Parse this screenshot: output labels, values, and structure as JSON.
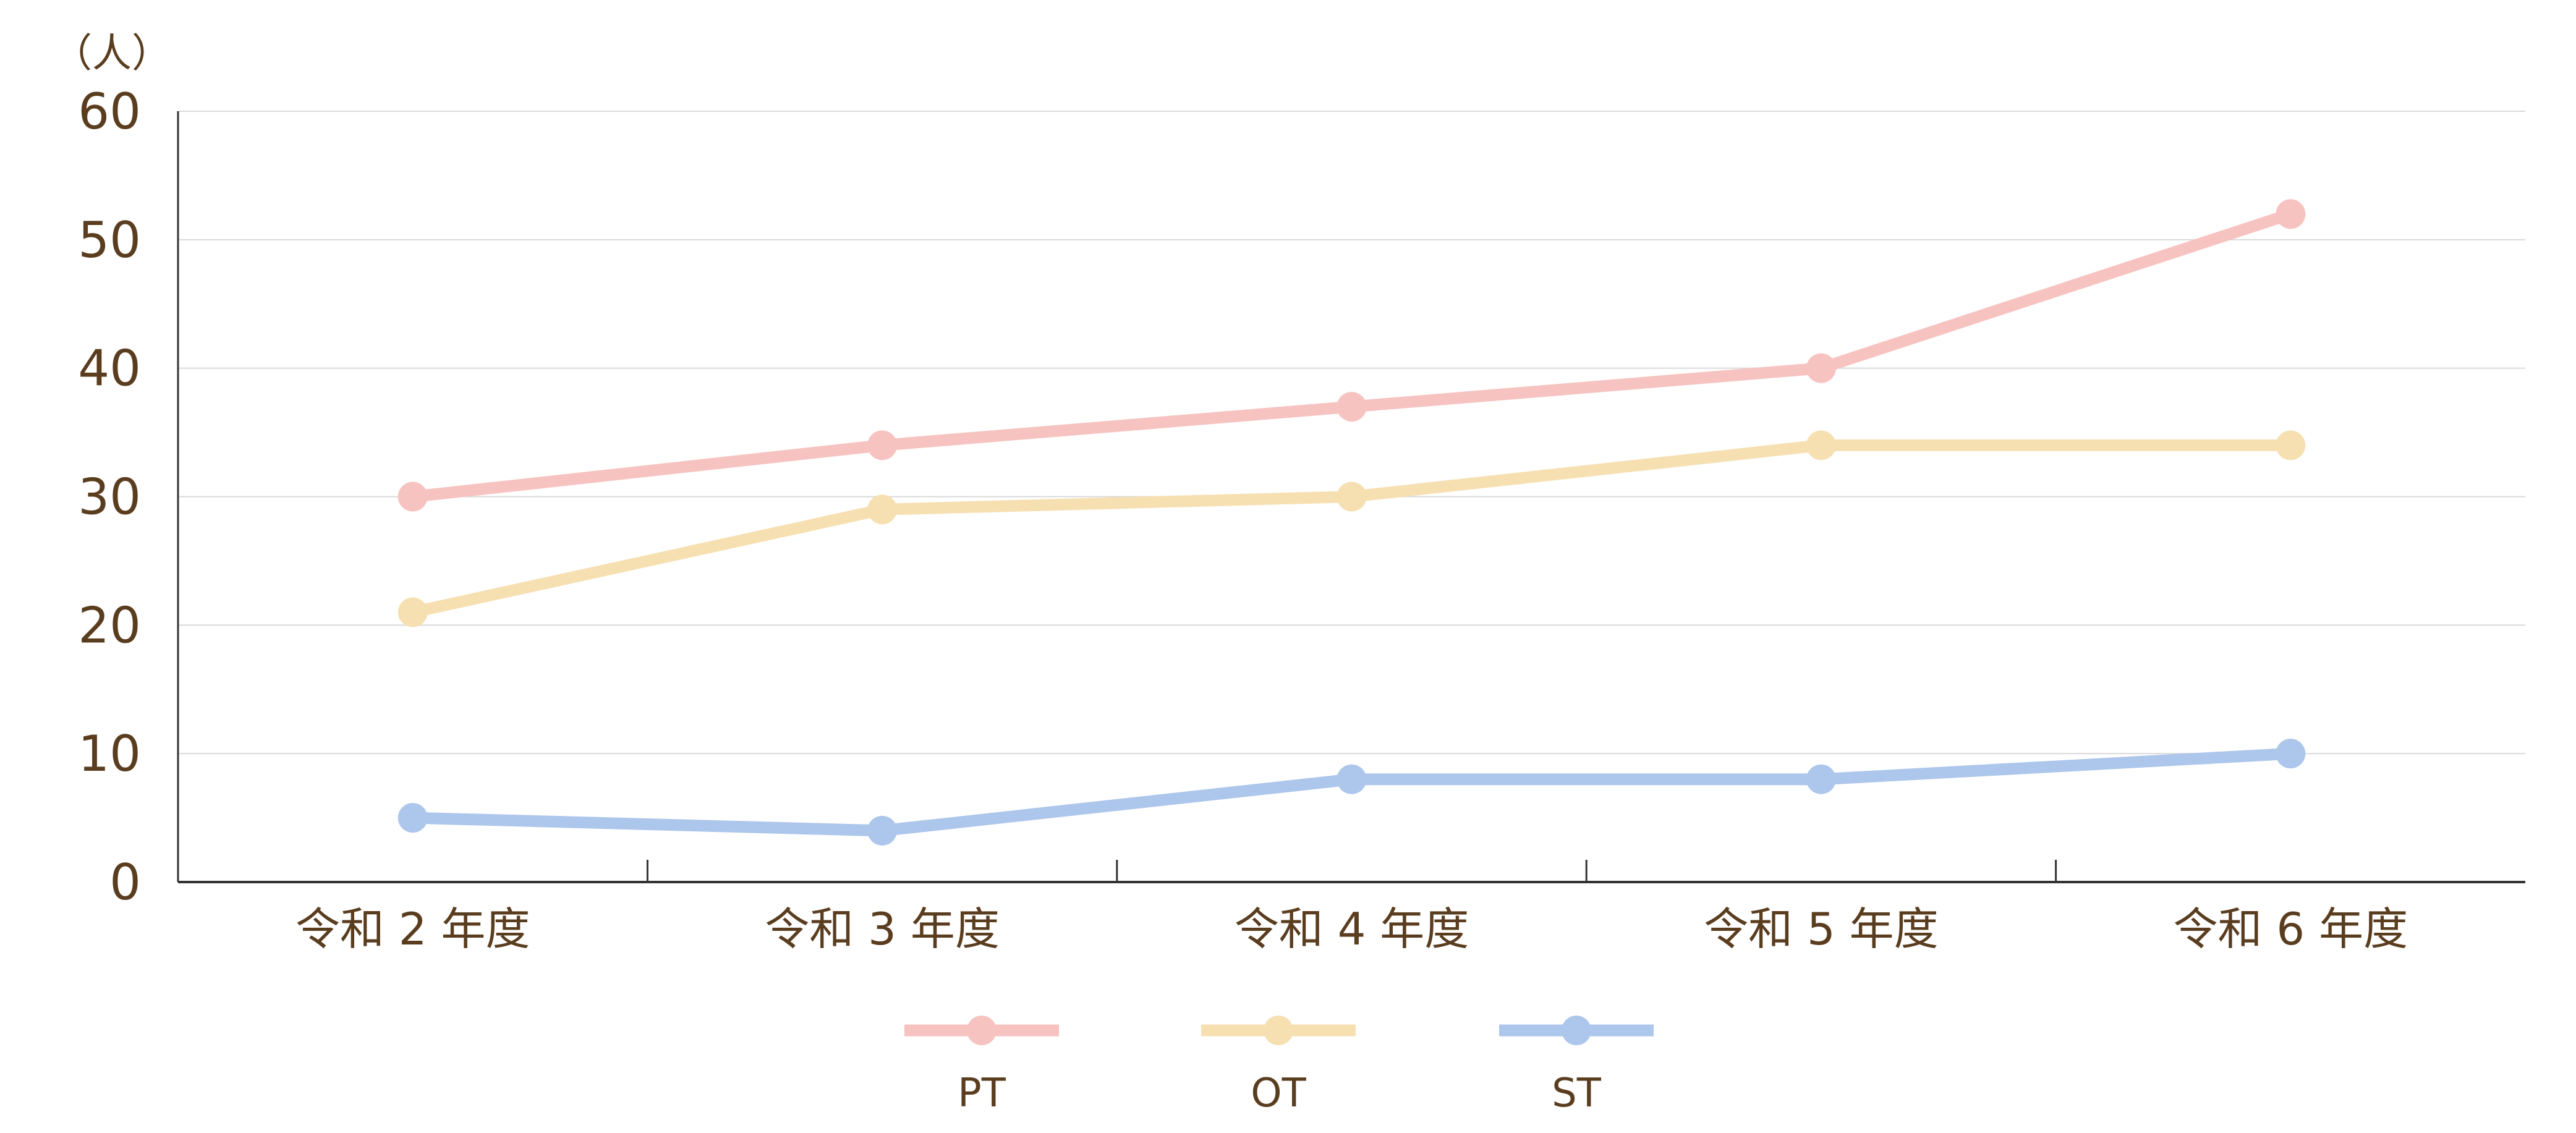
{
  "chart_data": {
    "type": "line",
    "unit_label": "（人）",
    "categories": [
      "令和 2 年度",
      "令和 3 年度",
      "令和 4 年度",
      "令和 5 年度",
      "令和 6 年度"
    ],
    "yticks": [
      "0",
      "10",
      "20",
      "30",
      "40",
      "50",
      "60"
    ],
    "ylim": [
      0,
      60
    ],
    "grid": true,
    "legend_position": "bottom",
    "series": [
      {
        "name": "PT",
        "color": "#f7c3c0",
        "values": [
          30,
          34,
          37,
          40,
          52
        ]
      },
      {
        "name": "OT",
        "color": "#f6e0b2",
        "values": [
          21,
          29,
          30,
          34,
          34
        ]
      },
      {
        "name": "ST",
        "color": "#adc6eb",
        "values": [
          5,
          4,
          8,
          8,
          10
        ]
      }
    ]
  }
}
